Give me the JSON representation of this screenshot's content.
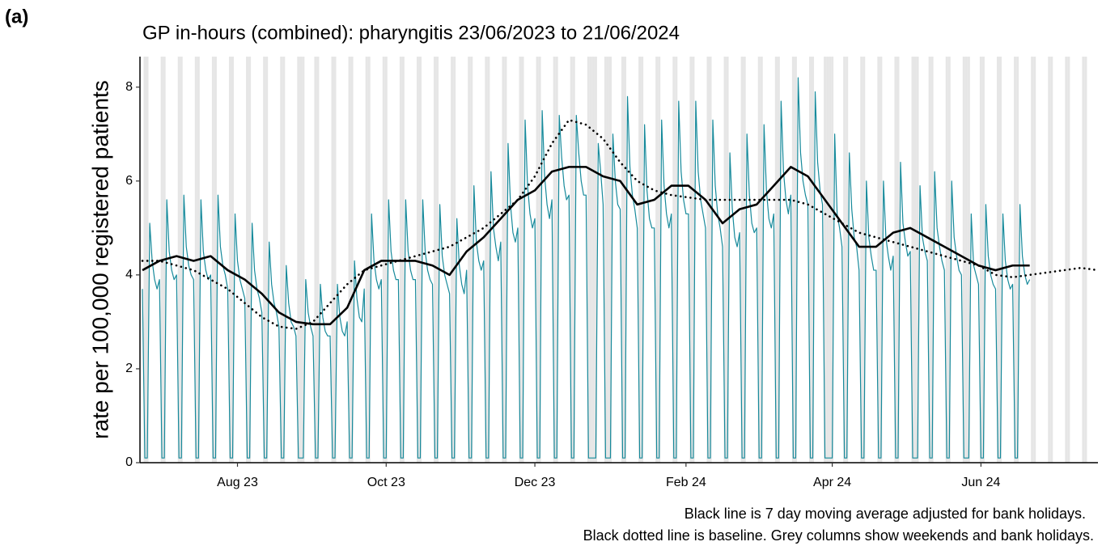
{
  "panel_label": "(a)",
  "chart_data": {
    "type": "line",
    "title": "GP in-hours (combined): pharyngitis 23/06/2023 to 21/06/2024",
    "y_label": "rate per 100,000 registered patients",
    "notes": [
      "Black line is 7 day moving average adjusted for bank holidays.",
      "Black dotted line is baseline. Grey columns show weekends and bank holidays."
    ],
    "xlim": [
      -1,
      392
    ],
    "xticks": [
      {
        "value": 39,
        "label": "Aug 23"
      },
      {
        "value": 100,
        "label": "Oct 23"
      },
      {
        "value": 161,
        "label": "Dec 23"
      },
      {
        "value": 223,
        "label": "Feb 24"
      },
      {
        "value": 283,
        "label": "Apr 24"
      },
      {
        "value": 344,
        "label": "Jun 24"
      }
    ],
    "ylim": [
      0,
      8.65
    ],
    "yticks": [
      0,
      2,
      4,
      6,
      8
    ],
    "bank_holidays": [
      66,
      185,
      186,
      192,
      280,
      283,
      318,
      339
    ],
    "shade_color": "#e6e6e6",
    "series": [
      {
        "color": "#178a9b",
        "style": "solid",
        "width": 1.2,
        "values": [
          3.7,
          0.1,
          0.1,
          5.1,
          4.3,
          3.9,
          3.7,
          3.9,
          0.1,
          0.1,
          5.6,
          4.5,
          4.1,
          3.9,
          4.0,
          0.1,
          0.1,
          5.7,
          4.6,
          4.2,
          4.0,
          3.9,
          0.1,
          0.1,
          5.6,
          4.5,
          4.1,
          3.9,
          4.0,
          0.1,
          0.1,
          5.7,
          4.6,
          4.2,
          4.0,
          3.7,
          0.1,
          0.1,
          5.3,
          4.3,
          3.9,
          3.7,
          3.5,
          0.1,
          0.1,
          5.1,
          4.1,
          3.7,
          3.5,
          3.2,
          0.1,
          0.1,
          4.7,
          3.8,
          3.4,
          3.2,
          2.9,
          0.1,
          0.1,
          4.2,
          3.4,
          3.0,
          2.9,
          2.7,
          0.1,
          0.1,
          0.1,
          3.9,
          3.2,
          2.9,
          2.7,
          0.1,
          0.1,
          3.8,
          3.1,
          2.8,
          2.7,
          2.7,
          0.1,
          0.1,
          3.8,
          3.1,
          2.8,
          2.7,
          3.0,
          0.1,
          0.1,
          4.3,
          3.5,
          3.1,
          3.0,
          3.7,
          0.1,
          0.1,
          5.3,
          4.3,
          3.9,
          3.7,
          3.9,
          0.1,
          0.1,
          5.6,
          4.5,
          4.1,
          3.9,
          3.9,
          0.1,
          0.1,
          5.6,
          4.5,
          4.1,
          3.9,
          3.9,
          0.1,
          0.1,
          5.6,
          4.5,
          4.1,
          3.9,
          3.8,
          0.1,
          0.1,
          5.5,
          4.4,
          4.0,
          3.8,
          3.6,
          0.1,
          0.1,
          5.2,
          4.2,
          3.8,
          3.6,
          4.1,
          0.1,
          0.1,
          5.9,
          4.7,
          4.3,
          4.1,
          4.3,
          0.1,
          0.1,
          6.2,
          5.0,
          4.6,
          4.3,
          4.7,
          0.1,
          0.1,
          6.8,
          5.5,
          4.9,
          4.7,
          5.0,
          0.1,
          0.1,
          7.3,
          5.9,
          5.3,
          5.0,
          5.2,
          0.1,
          0.1,
          7.5,
          6.1,
          5.5,
          5.2,
          5.6,
          0.1,
          0.1,
          7.4,
          6.5,
          5.9,
          5.6,
          5.7,
          0.1,
          0.1,
          7.4,
          6.6,
          6.0,
          5.7,
          5.7,
          0.1,
          0.1,
          0.1,
          0.1,
          6.8,
          6.2,
          5.5,
          0.1,
          0.1,
          0.1,
          7.0,
          6.0,
          5.5,
          5.4,
          0.1,
          0.1,
          7.8,
          6.3,
          5.7,
          5.4,
          5.0,
          0.1,
          0.1,
          7.2,
          5.8,
          5.2,
          5.0,
          5.0,
          0.1,
          0.1,
          7.3,
          5.9,
          5.3,
          5.0,
          5.3,
          0.1,
          0.1,
          7.7,
          6.2,
          5.6,
          5.3,
          5.3,
          0.1,
          0.1,
          7.7,
          6.2,
          5.6,
          5.3,
          5.0,
          0.1,
          0.1,
          7.3,
          5.9,
          5.3,
          5.0,
          4.6,
          0.1,
          0.1,
          6.6,
          5.4,
          4.8,
          4.6,
          4.9,
          0.1,
          0.1,
          7.0,
          5.7,
          5.1,
          4.9,
          5.0,
          0.1,
          0.1,
          7.2,
          5.8,
          5.2,
          5.0,
          5.3,
          0.1,
          0.1,
          7.7,
          6.2,
          5.6,
          5.3,
          5.7,
          0.1,
          0.1,
          8.2,
          6.6,
          6.0,
          5.7,
          5.5,
          0.1,
          0.1,
          7.9,
          6.4,
          5.8,
          5.5,
          0.1,
          0.1,
          0.1,
          0.1,
          7.0,
          5.3,
          5.0,
          4.6,
          0.1,
          0.1,
          6.6,
          5.4,
          4.8,
          4.6,
          4.1,
          0.1,
          0.1,
          6.0,
          4.8,
          4.4,
          4.1,
          4.1,
          0.1,
          0.1,
          6.0,
          4.8,
          4.4,
          4.1,
          4.4,
          0.1,
          0.1,
          6.4,
          5.1,
          4.7,
          4.4,
          4.5,
          0.1,
          0.1,
          0.1,
          5.9,
          4.8,
          4.5,
          4.3,
          0.1,
          0.1,
          6.2,
          5.0,
          4.6,
          4.3,
          4.1,
          0.1,
          0.1,
          6.0,
          4.8,
          4.4,
          4.1,
          4.0,
          0.1,
          0.1,
          0.1,
          5.3,
          4.2,
          4.0,
          3.8,
          0.1,
          0.1,
          5.5,
          4.4,
          4.0,
          3.8,
          3.7,
          0.1,
          0.1,
          5.3,
          4.3,
          3.9,
          3.7,
          3.8,
          0.1,
          0.1,
          5.5,
          4.4,
          4.0,
          3.8,
          3.9
        ]
      },
      {
        "color": "#000000",
        "style": "solid",
        "width": 2.6,
        "x": [
          0,
          7,
          14,
          21,
          28,
          35,
          42,
          49,
          56,
          63,
          70,
          77,
          84,
          91,
          98,
          105,
          112,
          119,
          126,
          133,
          140,
          147,
          154,
          161,
          168,
          175,
          182,
          189,
          196,
          203,
          210,
          217,
          224,
          231,
          238,
          245,
          252,
          259,
          266,
          273,
          280,
          287,
          294,
          301,
          308,
          315,
          322,
          329,
          336,
          343,
          350,
          357,
          364
        ],
        "values": [
          4.1,
          4.3,
          4.4,
          4.3,
          4.4,
          4.1,
          3.9,
          3.6,
          3.2,
          3.0,
          2.95,
          2.95,
          3.3,
          4.1,
          4.3,
          4.3,
          4.3,
          4.2,
          4.0,
          4.5,
          4.8,
          5.2,
          5.6,
          5.8,
          6.2,
          6.3,
          6.3,
          6.1,
          6.0,
          5.5,
          5.6,
          5.9,
          5.9,
          5.6,
          5.1,
          5.4,
          5.5,
          5.9,
          6.3,
          6.1,
          5.6,
          5.1,
          4.6,
          4.6,
          4.9,
          5.0,
          4.8,
          4.6,
          4.4,
          4.2,
          4.1,
          4.2,
          4.2
        ]
      },
      {
        "color": "#000000",
        "style": "dotted",
        "width": 2.6,
        "x": [
          0,
          7,
          14,
          21,
          28,
          35,
          42,
          49,
          56,
          63,
          70,
          77,
          84,
          91,
          98,
          105,
          112,
          119,
          126,
          133,
          140,
          147,
          154,
          161,
          168,
          175,
          182,
          189,
          196,
          203,
          210,
          217,
          224,
          231,
          238,
          245,
          252,
          259,
          266,
          273,
          280,
          287,
          294,
          301,
          308,
          315,
          322,
          329,
          336,
          343,
          350,
          357,
          364,
          371,
          378,
          385,
          392
        ],
        "values": [
          4.3,
          4.3,
          4.2,
          4.1,
          3.9,
          3.7,
          3.4,
          3.1,
          2.9,
          2.85,
          3.0,
          3.4,
          3.8,
          4.1,
          4.2,
          4.3,
          4.4,
          4.5,
          4.6,
          4.8,
          5.0,
          5.3,
          5.6,
          6.1,
          6.8,
          7.3,
          7.2,
          6.9,
          6.4,
          6.0,
          5.8,
          5.7,
          5.65,
          5.6,
          5.6,
          5.6,
          5.6,
          5.6,
          5.6,
          5.5,
          5.3,
          5.1,
          4.9,
          4.8,
          4.7,
          4.6,
          4.5,
          4.4,
          4.3,
          4.2,
          4.0,
          3.95,
          4.0,
          4.05,
          4.1,
          4.15,
          4.1
        ]
      }
    ]
  }
}
